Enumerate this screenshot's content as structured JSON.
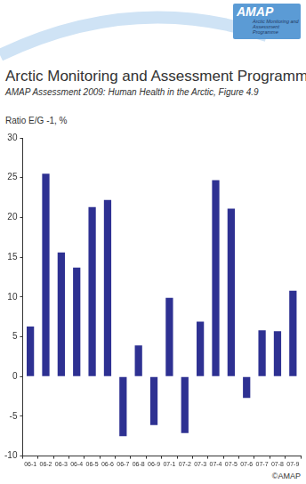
{
  "logo": {
    "name": "AMAP",
    "full_name": "Arctic Monitoring and Assessment Programme"
  },
  "chart_data": {
    "type": "bar",
    "title": "Arctic Monitoring and Assessment Programme",
    "subtitle": "AMAP Assessment 2009: Human Health in the Arctic, Figure 4.9",
    "y_label": "Ratio E/G -1, %",
    "annotation": "©AMAP",
    "categories": [
      "06-1",
      "06-2",
      "06-3",
      "06-4",
      "06-5",
      "06-6",
      "06-7",
      "06-8",
      "06-9",
      "07-1",
      "07-2",
      "07-3",
      "07-4",
      "07-5",
      "07-6",
      "07-7",
      "07-8",
      "07-9"
    ],
    "values": [
      6.3,
      25.5,
      15.6,
      13.7,
      21.3,
      22.2,
      -7.5,
      3.9,
      -6.1,
      9.9,
      -7.1,
      6.9,
      24.7,
      21.1,
      -2.7,
      5.8,
      5.7,
      10.8
    ],
    "color": "#2e3192",
    "ylim": [
      -10,
      30
    ],
    "yticks": [
      -10,
      -5,
      0,
      5,
      10,
      15,
      20,
      25,
      30
    ],
    "grid": false
  }
}
